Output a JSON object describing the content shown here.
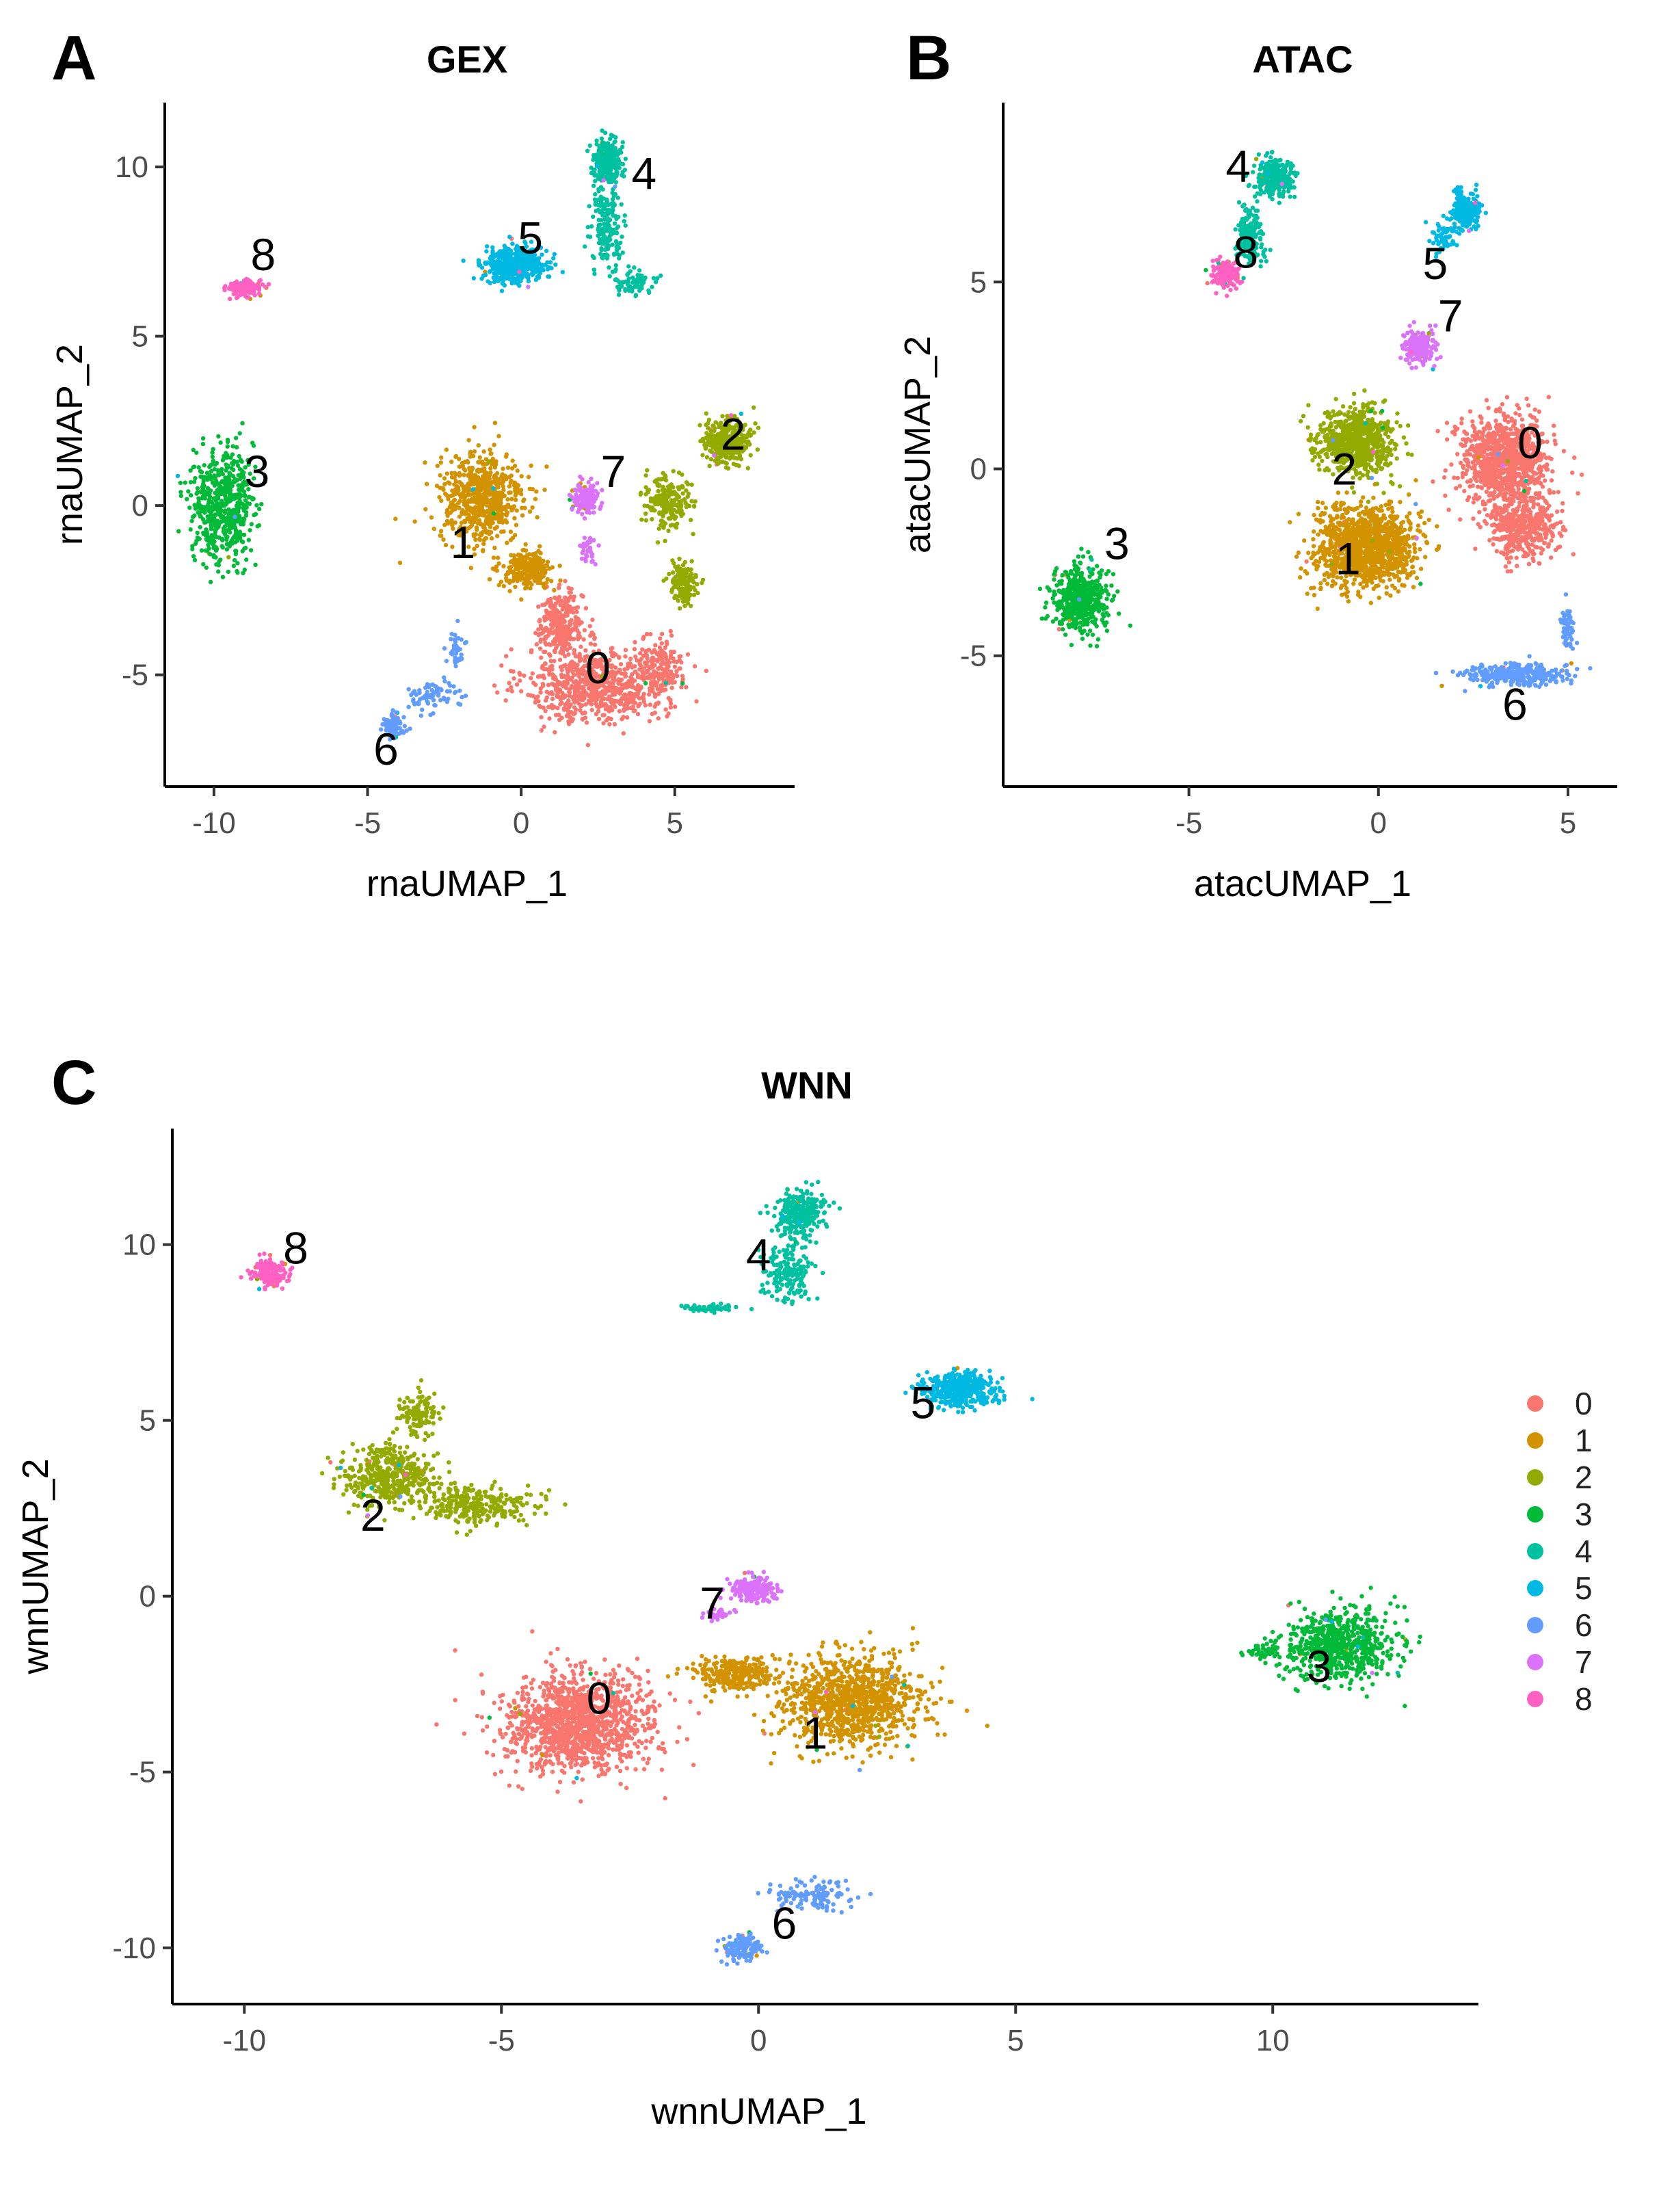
{
  "chart_data": [
    {
      "id": "A",
      "type": "scatter",
      "panel_letter": "A",
      "title": "GEX",
      "xlabel": "rnaUMAP_1",
      "ylabel": "rnaUMAP_2",
      "xlim": [
        -11.6,
        8.9
      ],
      "ylim": [
        -8.3,
        11.9
      ],
      "xticks": [
        -10,
        -5,
        0,
        5
      ],
      "yticks": [
        -5,
        0,
        5,
        10
      ],
      "xtick_labels": [
        "-10",
        "-5",
        "0",
        "5"
      ],
      "ytick_labels": [
        "-5",
        "0",
        "5",
        "10"
      ],
      "clusters": [
        {
          "label": "0",
          "cx": 2.5,
          "cy": -5.2,
          "n": 1200,
          "blobs": [
            [
              2.4,
              -5.3,
              2.5,
              1.2,
              0.6
            ],
            [
              1.3,
              -3.5,
              0.8,
              1.0,
              0.25
            ],
            [
              4.5,
              -4.8,
              0.8,
              1.0,
              0.15
            ]
          ],
          "label_pos": [
            2.5,
            -4.9
          ]
        },
        {
          "label": "1",
          "cx": -1.3,
          "cy": -0.8,
          "n": 900,
          "blobs": [
            [
              -1.3,
              0.2,
              1.5,
              1.5,
              0.7
            ],
            [
              0.2,
              -1.9,
              0.9,
              0.6,
              0.3
            ]
          ],
          "label_pos": [
            -1.9,
            -1.2
          ]
        },
        {
          "label": "2",
          "cx": 5.5,
          "cy": 0.8,
          "n": 700,
          "blobs": [
            [
              6.7,
              1.9,
              0.8,
              0.7,
              0.5
            ],
            [
              4.8,
              0.1,
              0.9,
              0.8,
              0.3
            ],
            [
              5.3,
              -2.3,
              0.5,
              0.7,
              0.2
            ]
          ],
          "label_pos": [
            6.9,
            2.0
          ]
        },
        {
          "label": "3",
          "cx": -9.7,
          "cy": 0.0,
          "n": 600,
          "blobs": [
            [
              -9.7,
              0.0,
              1.1,
              1.8,
              1.0
            ]
          ],
          "label_pos": [
            -8.6,
            0.9
          ]
        },
        {
          "label": "4",
          "cx": 2.8,
          "cy": 8.5,
          "n": 500,
          "blobs": [
            [
              2.8,
              10.2,
              0.5,
              0.7,
              0.5
            ],
            [
              2.8,
              8.3,
              0.6,
              1.2,
              0.35
            ],
            [
              3.6,
              6.6,
              0.9,
              0.4,
              0.15
            ]
          ],
          "label_pos": [
            4.0,
            9.7
          ]
        },
        {
          "label": "5",
          "cx": -0.2,
          "cy": 7.1,
          "n": 450,
          "blobs": [
            [
              -0.2,
              7.1,
              1.1,
              0.6,
              1.0
            ]
          ],
          "label_pos": [
            0.3,
            7.8
          ]
        },
        {
          "label": "6",
          "cx": -3.5,
          "cy": -5.8,
          "n": 200,
          "blobs": [
            [
              -4.2,
              -6.5,
              0.4,
              0.4,
              0.4
            ],
            [
              -2.8,
              -5.6,
              0.9,
              0.5,
              0.4
            ],
            [
              -2.1,
              -4.3,
              0.3,
              0.6,
              0.2
            ]
          ],
          "label_pos": [
            -4.4,
            -7.3
          ]
        },
        {
          "label": "7",
          "cx": 2.1,
          "cy": 0.2,
          "n": 180,
          "blobs": [
            [
              2.1,
              0.2,
              0.5,
              0.5,
              0.8
            ],
            [
              2.2,
              -1.3,
              0.3,
              0.5,
              0.2
            ]
          ],
          "label_pos": [
            3.0,
            0.9
          ]
        },
        {
          "label": "8",
          "cx": -9.0,
          "cy": 6.4,
          "n": 150,
          "blobs": [
            [
              -9.0,
              6.4,
              0.6,
              0.3,
              1.0
            ]
          ],
          "label_pos": [
            -8.4,
            7.3
          ]
        }
      ]
    },
    {
      "id": "B",
      "type": "scatter",
      "panel_letter": "B",
      "title": "ATAC",
      "xlabel": "atacUMAP_1",
      "ylabel": "atacUMAP_2",
      "xlim": [
        -9.9,
        6.3
      ],
      "ylim": [
        -8.5,
        9.8
      ],
      "xticks": [
        -5,
        0,
        5
      ],
      "yticks": [
        -5,
        0,
        5
      ],
      "xtick_labels": [
        "-5",
        "0",
        "5"
      ],
      "ytick_labels": [
        "-5",
        "0",
        "5"
      ],
      "clusters": [
        {
          "label": "0",
          "cx": 3.5,
          "cy": -0.5,
          "n": 1400,
          "blobs": [
            [
              3.3,
              0.2,
              1.3,
              1.3,
              0.7
            ],
            [
              3.8,
              -1.6,
              1.0,
              1.0,
              0.3
            ]
          ],
          "label_pos": [
            4.0,
            0.6
          ]
        },
        {
          "label": "1",
          "cx": -0.3,
          "cy": -2.0,
          "n": 1200,
          "blobs": [
            [
              -0.3,
              -2.1,
              1.4,
              1.2,
              1.0
            ]
          ],
          "label_pos": [
            -0.8,
            -2.5
          ]
        },
        {
          "label": "2",
          "cx": -0.6,
          "cy": 0.4,
          "n": 700,
          "blobs": [
            [
              -0.6,
              0.7,
              1.1,
              1.0,
              1.0
            ]
          ],
          "label_pos": [
            -0.9,
            -0.1
          ]
        },
        {
          "label": "3",
          "cx": -7.9,
          "cy": -3.5,
          "n": 500,
          "blobs": [
            [
              -7.9,
              -3.5,
              0.8,
              1.0,
              1.0
            ]
          ],
          "label_pos": [
            -6.9,
            -2.1
          ]
        },
        {
          "label": "4",
          "cx": -2.7,
          "cy": 7.5,
          "n": 450,
          "blobs": [
            [
              -2.7,
              7.8,
              0.6,
              0.6,
              0.55
            ],
            [
              -3.4,
              6.2,
              0.4,
              0.8,
              0.45
            ]
          ],
          "label_pos": [
            -3.7,
            8.0
          ]
        },
        {
          "label": "5",
          "cx": 2.3,
          "cy": 6.7,
          "n": 300,
          "blobs": [
            [
              2.3,
              6.9,
              0.4,
              0.5,
              0.8
            ],
            [
              1.7,
              6.2,
              0.4,
              0.4,
              0.2
            ]
          ],
          "label_pos": [
            1.5,
            5.4
          ]
        },
        {
          "label": "6",
          "cx": 3.5,
          "cy": -5.3,
          "n": 350,
          "blobs": [
            [
              3.6,
              -5.5,
              1.5,
              0.3,
              0.85
            ],
            [
              5.0,
              -4.3,
              0.2,
              0.6,
              0.15
            ]
          ],
          "label_pos": [
            3.6,
            -6.4
          ]
        },
        {
          "label": "7",
          "cx": 1.1,
          "cy": 3.3,
          "n": 200,
          "blobs": [
            [
              1.1,
              3.3,
              0.5,
              0.5,
              1.0
            ]
          ],
          "label_pos": [
            1.9,
            4.0
          ]
        },
        {
          "label": "8",
          "cx": -4.0,
          "cy": 5.2,
          "n": 150,
          "blobs": [
            [
              -4.0,
              5.2,
              0.4,
              0.4,
              1.0
            ]
          ],
          "label_pos": [
            -3.5,
            5.7
          ]
        }
      ]
    },
    {
      "id": "C",
      "type": "scatter",
      "panel_letter": "C",
      "title": "WNN",
      "xlabel": "wnnUMAP_1",
      "ylabel": "wnnUMAP_2",
      "xlim": [
        -11.4,
        14.0
      ],
      "ylim": [
        -11.6,
        13.3
      ],
      "xticks": [
        -10,
        -5,
        0,
        5,
        10
      ],
      "yticks": [
        -10,
        -5,
        0,
        5,
        10
      ],
      "xtick_labels": [
        "-10",
        "-5",
        "0",
        "5",
        "10"
      ],
      "ytick_labels": [
        "-10",
        "-5",
        "0",
        "5",
        "10"
      ],
      "legend": {
        "position": "right",
        "labels": [
          "0",
          "1",
          "2",
          "3",
          "4",
          "5",
          "6",
          "7",
          "8"
        ]
      },
      "clusters": [
        {
          "label": "0",
          "cx": -3.5,
          "cy": -3.6,
          "n": 1300,
          "blobs": [
            [
              -3.5,
              -3.6,
              1.5,
              1.5,
              1.0
            ]
          ],
          "label_pos": [
            -3.1,
            -3.0
          ]
        },
        {
          "label": "1",
          "cx": 1.5,
          "cy": -3.0,
          "n": 1300,
          "blobs": [
            [
              1.8,
              -3.0,
              1.4,
              1.4,
              0.8
            ],
            [
              -0.5,
              -2.2,
              0.9,
              0.5,
              0.2
            ]
          ],
          "label_pos": [
            1.1,
            -4.0
          ]
        },
        {
          "label": "2",
          "cx": -6.0,
          "cy": 3.0,
          "n": 800,
          "blobs": [
            [
              -7.2,
              3.4,
              1.0,
              1.0,
              0.5
            ],
            [
              -5.5,
              2.6,
              1.3,
              0.6,
              0.35
            ],
            [
              -6.6,
              5.2,
              0.4,
              0.7,
              0.15
            ]
          ],
          "label_pos": [
            -7.5,
            2.2
          ]
        },
        {
          "label": "3",
          "cx": 11.2,
          "cy": -1.5,
          "n": 700,
          "blobs": [
            [
              11.3,
              -1.4,
              1.2,
              1.1,
              0.95
            ],
            [
              9.8,
              -1.6,
              0.4,
              0.2,
              0.05
            ]
          ],
          "label_pos": [
            10.9,
            -2.1
          ]
        },
        {
          "label": "4",
          "cx": 0.7,
          "cy": 10.0,
          "n": 500,
          "blobs": [
            [
              0.8,
              10.9,
              0.5,
              0.7,
              0.55
            ],
            [
              0.6,
              9.2,
              0.5,
              0.9,
              0.35
            ],
            [
              -1.0,
              8.2,
              0.6,
              0.15,
              0.1
            ]
          ],
          "label_pos": [
            0.0,
            9.6
          ]
        },
        {
          "label": "5",
          "cx": 3.9,
          "cy": 5.9,
          "n": 450,
          "blobs": [
            [
              3.9,
              5.9,
              0.8,
              0.5,
              1.0
            ]
          ],
          "label_pos": [
            3.2,
            5.4
          ]
        },
        {
          "label": "6",
          "cx": 0.4,
          "cy": -8.8,
          "n": 250,
          "blobs": [
            [
              -0.3,
              -10.0,
              0.4,
              0.4,
              0.5
            ],
            [
              1.0,
              -8.5,
              0.9,
              0.5,
              0.5
            ]
          ],
          "label_pos": [
            0.5,
            -9.4
          ]
        },
        {
          "label": "7",
          "cx": -0.1,
          "cy": 0.1,
          "n": 200,
          "blobs": [
            [
              -0.1,
              0.2,
              0.5,
              0.4,
              0.85
            ],
            [
              -0.8,
              -0.5,
              0.3,
              0.2,
              0.15
            ]
          ],
          "label_pos": [
            -0.9,
            -0.3
          ]
        },
        {
          "label": "8",
          "cx": -9.5,
          "cy": 9.2,
          "n": 150,
          "blobs": [
            [
              -9.5,
              9.2,
              0.4,
              0.4,
              1.0
            ]
          ],
          "label_pos": [
            -9.0,
            9.8
          ]
        }
      ]
    }
  ],
  "palette": {
    "0": "#F8766D",
    "1": "#D39200",
    "2": "#93AA00",
    "3": "#00BA38",
    "4": "#00C19F",
    "5": "#00B9E3",
    "6": "#619CFF",
    "7": "#DB72FB",
    "8": "#FF61C3"
  },
  "seed": 20240611
}
